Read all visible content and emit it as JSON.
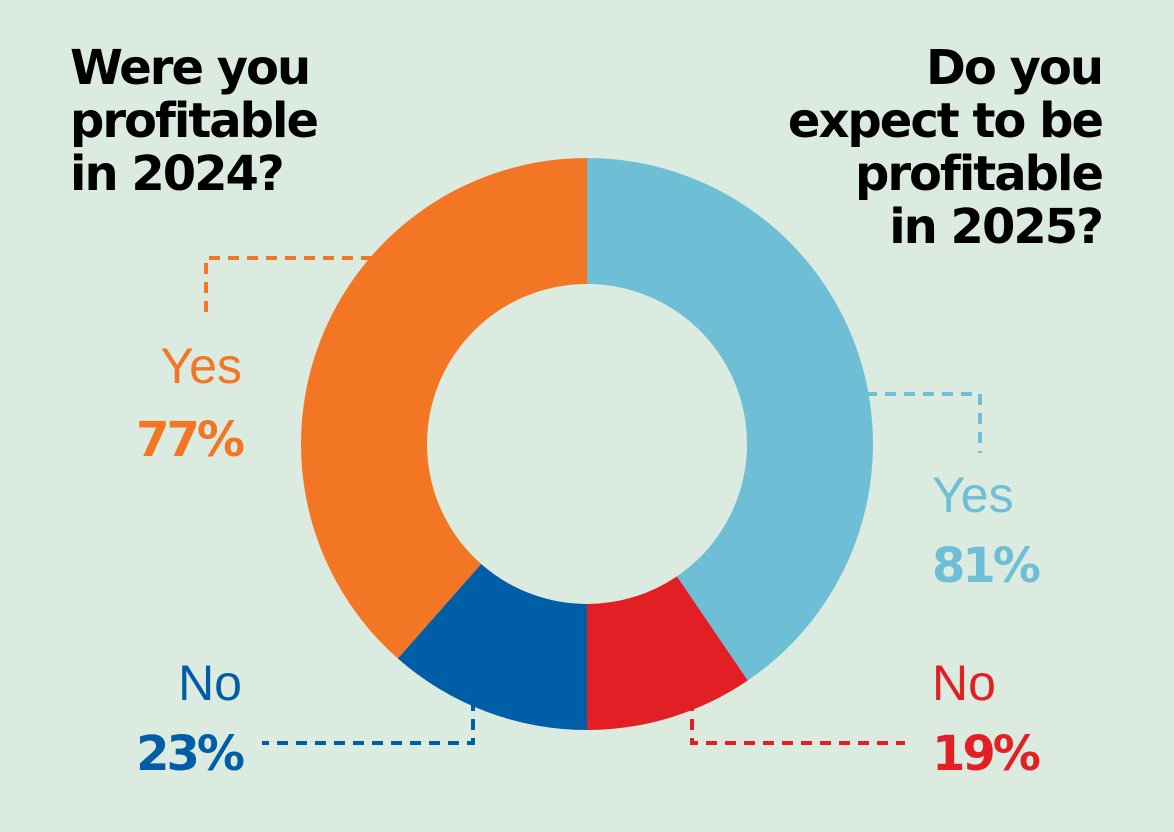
{
  "questions": {
    "left": "Were you\nprofitable\nin 2024?",
    "right": "Do you\nexpect to be\nprofitable\nin 2025?"
  },
  "colors": {
    "background": "#dcebdf",
    "yes_2024": "#f27623",
    "no_2024": "#005ea6",
    "yes_2025": "#6ebfd6",
    "no_2025": "#e31f26"
  },
  "chart_data": {
    "type": "pie",
    "variant": "split-donut",
    "title": "",
    "series": [
      {
        "name": "Were you profitable in 2024?",
        "half": "left",
        "slices": [
          {
            "label": "Yes",
            "value": 77,
            "display": "77%",
            "color": "#f27623"
          },
          {
            "label": "No",
            "value": 23,
            "display": "23%",
            "color": "#005ea6"
          }
        ]
      },
      {
        "name": "Do you expect to be profitable in 2025?",
        "half": "right",
        "slices": [
          {
            "label": "Yes",
            "value": 81,
            "display": "81%",
            "color": "#6ebfd6"
          },
          {
            "label": "No",
            "value": 19,
            "display": "19%",
            "color": "#e31f26"
          }
        ]
      }
    ]
  }
}
